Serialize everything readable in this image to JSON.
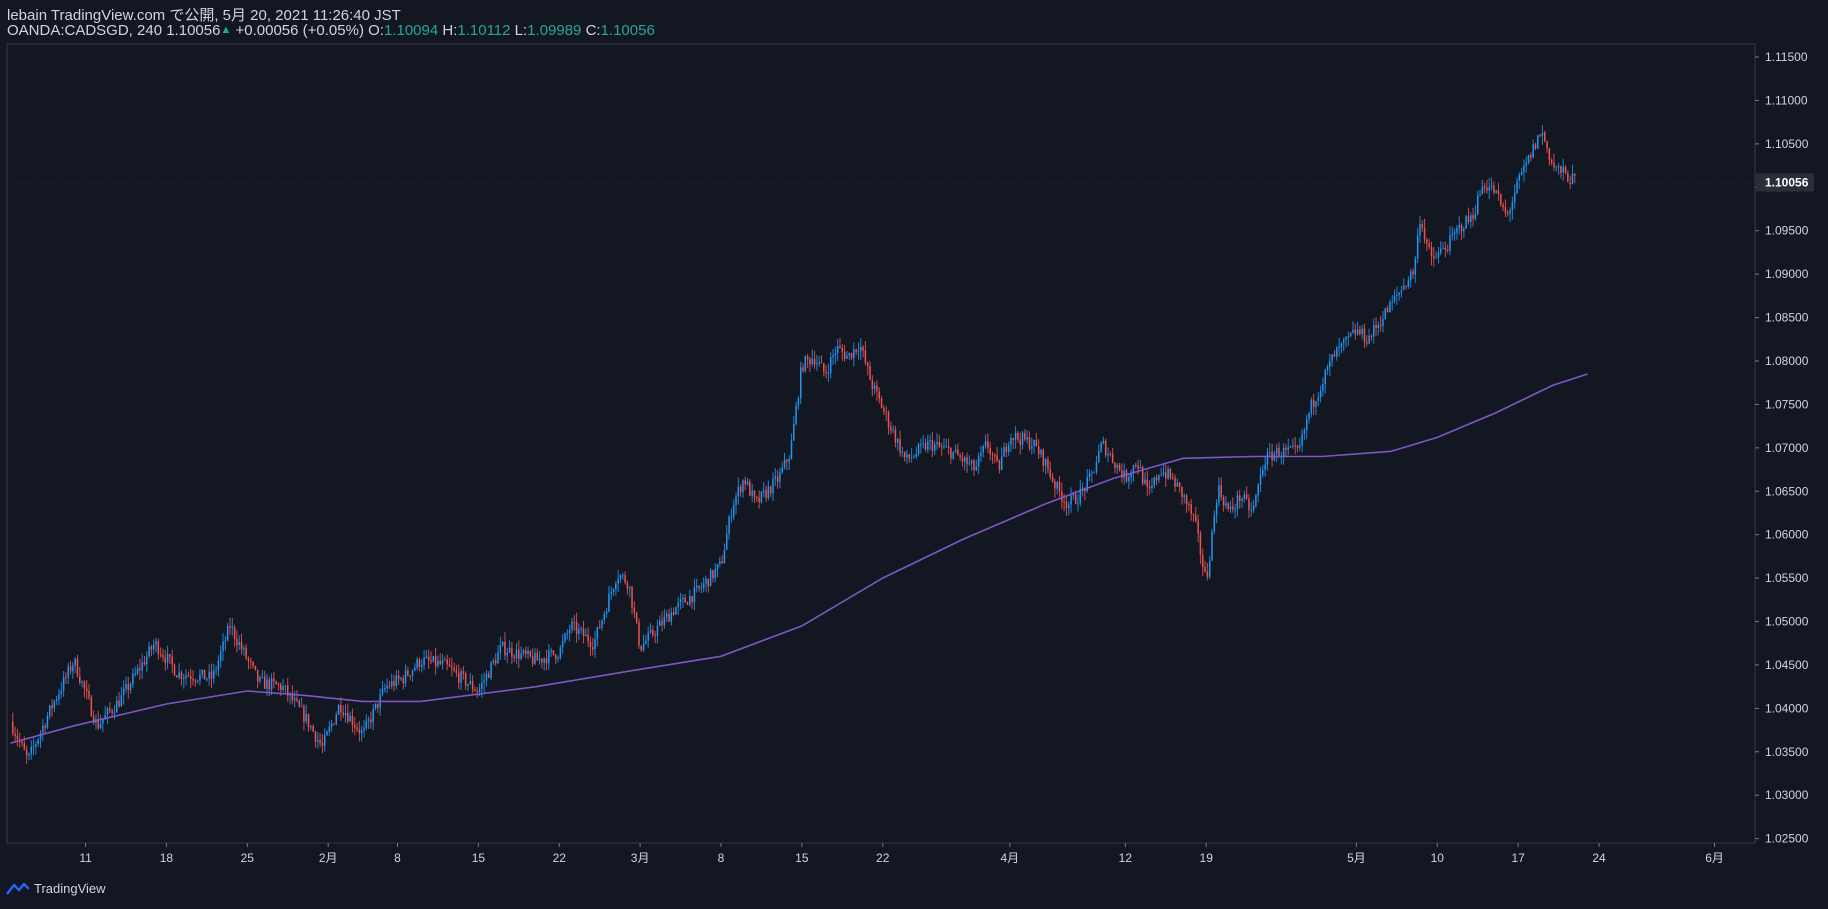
{
  "header": {
    "publisher": "lebain TradingView.com で公開, 5月 20, 2021 11:26:40 JST",
    "symbol": "OANDA:CADSGD, 240",
    "last": "1.10056",
    "change": "+0.00056 (+0.05%)",
    "o_label": "O:",
    "o_value": "1.10094",
    "h_label": "H:",
    "h_value": "1.10112",
    "l_label": "L:",
    "l_value": "1.09989",
    "c_label": "C:",
    "c_value": "1.10056"
  },
  "footer": {
    "brand": "TradingView"
  },
  "colors": {
    "bg": "#131722",
    "up": "#2196f3",
    "down": "#ef5350",
    "ma": "#7e57c2",
    "text": "#d1d4dc",
    "axis": "#787b86"
  },
  "chart_data": {
    "type": "candlestick",
    "title": "OANDA:CADSGD, 240",
    "ylim": [
      1.0245,
      1.1165
    ],
    "yticks": [
      "1.11500",
      "1.11000",
      "1.10500",
      "1.10000",
      "1.09500",
      "1.09000",
      "1.08500",
      "1.08000",
      "1.07500",
      "1.07000",
      "1.06500",
      "1.06000",
      "1.05500",
      "1.05000",
      "1.04500",
      "1.04000",
      "1.03500",
      "1.03000",
      "1.02500"
    ],
    "current_price": "1.10056",
    "xticks": [
      "11",
      "18",
      "25",
      "2月",
      "8",
      "15",
      "22",
      "3月",
      "8",
      "15",
      "22",
      "4月",
      "12",
      "19",
      "5月",
      "10",
      "17",
      "24",
      "6月"
    ],
    "xtick_days": [
      11,
      18,
      25,
      32,
      38,
      45,
      52,
      59,
      66,
      73,
      80,
      91,
      101,
      108,
      121,
      128,
      135,
      142,
      152
    ],
    "day_range": [
      4.2,
      155.5
    ],
    "price_path": [
      [
        4.5,
        1.0385
      ],
      [
        6,
        1.034
      ],
      [
        8,
        1.04
      ],
      [
        10,
        1.0455
      ],
      [
        12,
        1.038
      ],
      [
        14,
        1.041
      ],
      [
        17,
        1.0475
      ],
      [
        19,
        1.044
      ],
      [
        22,
        1.0435
      ],
      [
        23.5,
        1.0495
      ],
      [
        26,
        1.043
      ],
      [
        28,
        1.0425
      ],
      [
        30,
        1.039
      ],
      [
        31.5,
        1.0355
      ],
      [
        33,
        1.0405
      ],
      [
        35,
        1.037
      ],
      [
        37,
        1.0425
      ],
      [
        38.5,
        1.0435
      ],
      [
        40,
        1.0455
      ],
      [
        42,
        1.045
      ],
      [
        44,
        1.043
      ],
      [
        45,
        1.042
      ],
      [
        47,
        1.047
      ],
      [
        50,
        1.0455
      ],
      [
        52,
        1.0465
      ],
      [
        53,
        1.0495
      ],
      [
        55,
        1.0475
      ],
      [
        57,
        1.0555
      ],
      [
        58,
        1.0545
      ],
      [
        59,
        1.047
      ],
      [
        61,
        1.05
      ],
      [
        62,
        1.0515
      ],
      [
        64,
        1.0535
      ],
      [
        66,
        1.0565
      ],
      [
        67,
        1.0635
      ],
      [
        68,
        1.0665
      ],
      [
        69,
        1.0635
      ],
      [
        71,
        1.0665
      ],
      [
        72,
        1.0695
      ],
      [
        73,
        1.0795
      ],
      [
        74,
        1.0805
      ],
      [
        75,
        1.0785
      ],
      [
        76,
        1.0815
      ],
      [
        77,
        1.0805
      ],
      [
        78,
        1.082
      ],
      [
        79,
        1.0775
      ],
      [
        80,
        1.0745
      ],
      [
        81,
        1.0715
      ],
      [
        82,
        1.0685
      ],
      [
        84,
        1.0705
      ],
      [
        86,
        1.0695
      ],
      [
        88,
        1.0675
      ],
      [
        89,
        1.0705
      ],
      [
        90,
        1.0675
      ],
      [
        91,
        1.0715
      ],
      [
        93,
        1.0705
      ],
      [
        94,
        1.0685
      ],
      [
        95,
        1.0655
      ],
      [
        96,
        1.0635
      ],
      [
        97,
        1.0645
      ],
      [
        98,
        1.0665
      ],
      [
        99,
        1.0705
      ],
      [
        100,
        1.0685
      ],
      [
        101,
        1.0665
      ],
      [
        102,
        1.0685
      ],
      [
        103,
        1.0645
      ],
      [
        104,
        1.0675
      ],
      [
        105,
        1.0665
      ],
      [
        106,
        1.0645
      ],
      [
        107,
        1.0615
      ],
      [
        108,
        1.0545
      ],
      [
        109,
        1.0655
      ],
      [
        110,
        1.0625
      ],
      [
        111,
        1.0645
      ],
      [
        112,
        1.0625
      ],
      [
        113,
        1.0685
      ],
      [
        114,
        1.0695
      ],
      [
        116,
        1.0695
      ],
      [
        117,
        1.0745
      ],
      [
        119,
        1.0805
      ],
      [
        121,
        1.0835
      ],
      [
        122,
        1.0825
      ],
      [
        124,
        1.0865
      ],
      [
        126,
        1.0905
      ],
      [
        126.5,
        1.0965
      ],
      [
        127.5,
        1.0915
      ],
      [
        129,
        1.0935
      ],
      [
        130,
        1.0955
      ],
      [
        131,
        1.0965
      ],
      [
        132,
        1.1005
      ],
      [
        133,
        1.0995
      ],
      [
        134,
        1.0965
      ],
      [
        135,
        1.1005
      ],
      [
        136,
        1.1035
      ],
      [
        137,
        1.1065
      ],
      [
        138,
        1.1025
      ],
      [
        139,
        1.1015
      ],
      [
        140,
        1.10056
      ]
    ],
    "ma_path": [
      [
        4.5,
        1.036
      ],
      [
        10,
        1.038
      ],
      [
        18,
        1.0405
      ],
      [
        25,
        1.042
      ],
      [
        30,
        1.0415
      ],
      [
        35,
        1.0408
      ],
      [
        40,
        1.0408
      ],
      [
        50,
        1.0425
      ],
      [
        59,
        1.0445
      ],
      [
        66,
        1.046
      ],
      [
        73,
        1.0495
      ],
      [
        80,
        1.055
      ],
      [
        87,
        1.0595
      ],
      [
        94,
        1.0635
      ],
      [
        100,
        1.0665
      ],
      [
        106,
        1.0688
      ],
      [
        112,
        1.069
      ],
      [
        118,
        1.069
      ],
      [
        124,
        1.0696
      ],
      [
        128,
        1.0712
      ],
      [
        133,
        1.074
      ],
      [
        138,
        1.0772
      ],
      [
        141,
        1.0785
      ]
    ]
  }
}
